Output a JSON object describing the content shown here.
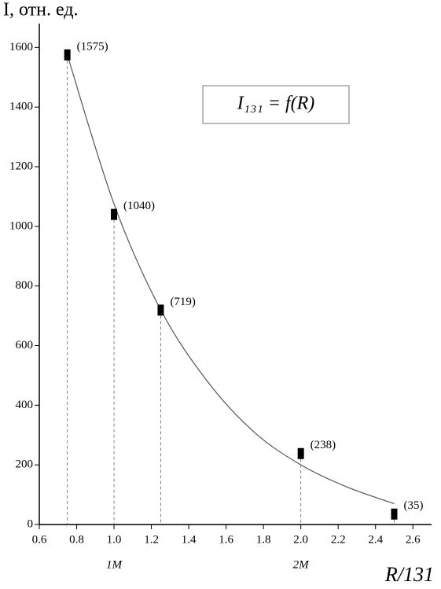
{
  "chart_data": {
    "type": "scatter",
    "ylabel": "I, отн. ед.",
    "xlabel": "R/131",
    "legend_text": "I₁₃₁ = f(R)",
    "x": [
      0.75,
      1.0,
      1.25,
      2.0,
      2.5
    ],
    "values": [
      1575,
      1040,
      719,
      238,
      35
    ],
    "value_labels": [
      "(1575)",
      "(1040)",
      "(719)",
      "(238)",
      "(35)"
    ],
    "color": "#000000",
    "fit": {
      "x": [
        0.75,
        1.0,
        1.25,
        1.5,
        1.75,
        2.0,
        2.25,
        2.5
      ],
      "values": [
        1575,
        1075,
        720,
        480,
        310,
        200,
        125,
        70
      ],
      "color": "#555555"
    },
    "annotations": [
      {
        "x": 1.0,
        "text": "1M"
      },
      {
        "x": 2.0,
        "text": "2M"
      }
    ],
    "xlim": [
      0.6,
      2.7
    ],
    "ylim": [
      0,
      1680
    ],
    "xticks": [
      0.6,
      0.8,
      {
        "value": 1.0,
        "label": "1.0"
      },
      1.2,
      1.4,
      1.6,
      1.8,
      {
        "value": 2.0,
        "label": "2.0"
      },
      2.2,
      2.4,
      2.6
    ],
    "yticks": [
      0,
      200,
      400,
      600,
      800,
      1000,
      1200,
      1400,
      1600
    ]
  }
}
